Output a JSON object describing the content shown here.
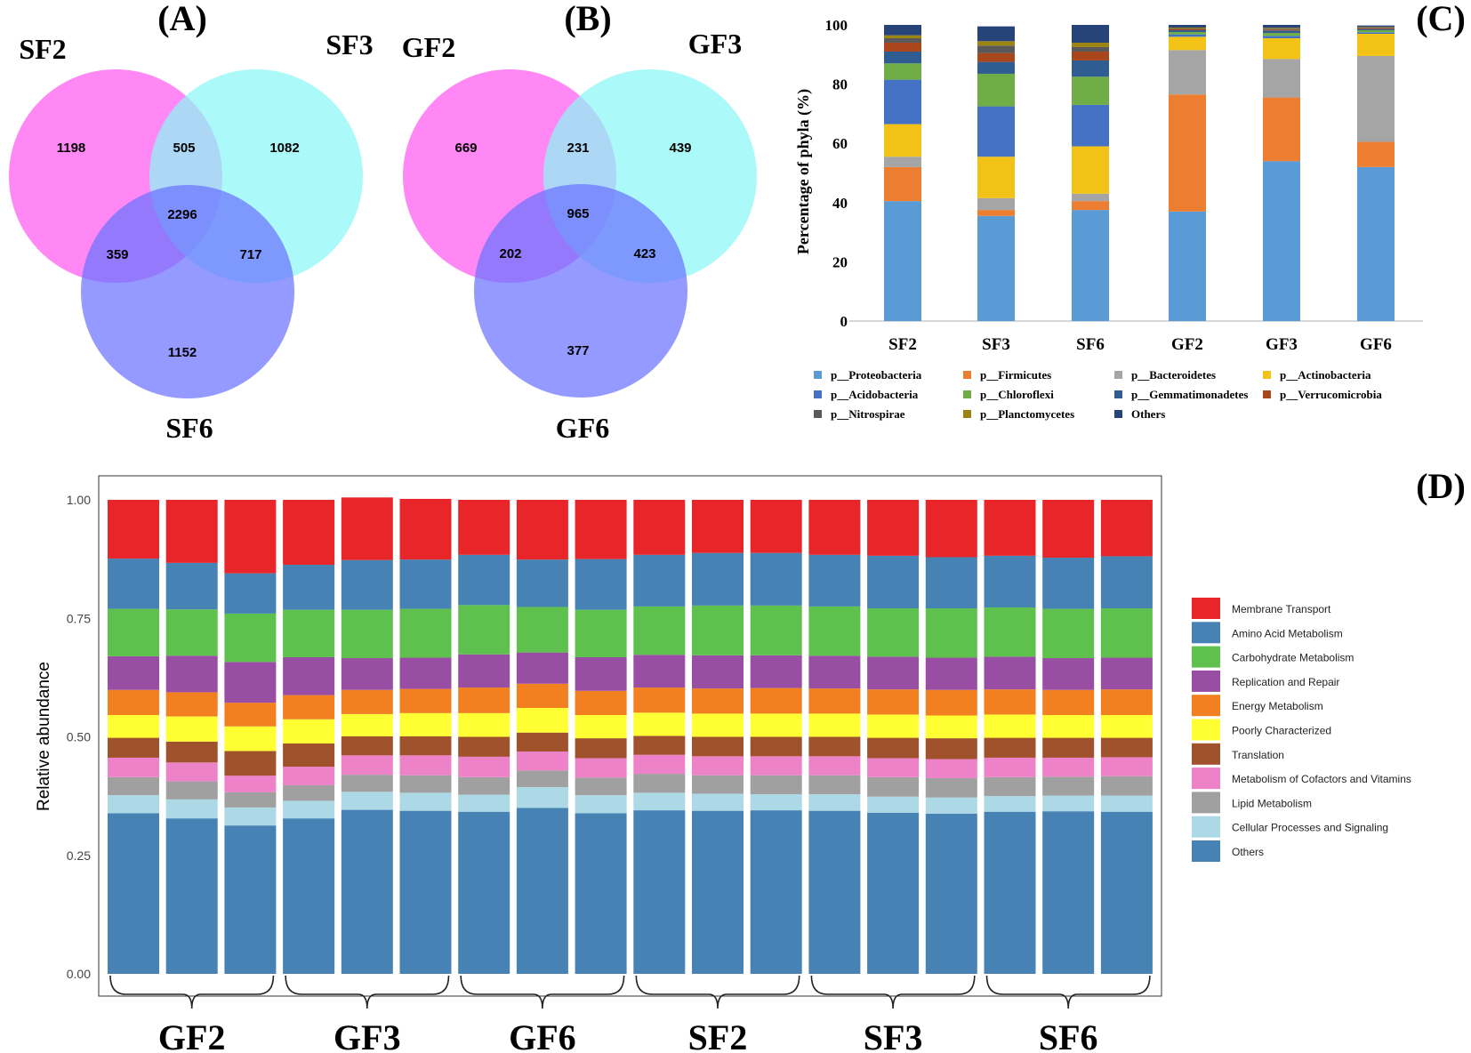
{
  "panels": {
    "A": {
      "label": "(A)",
      "sets": [
        "SF2",
        "SF3",
        "SF6"
      ],
      "counts": {
        "only1": "1198",
        "one_two": "505",
        "only2": "1082",
        "all": "2296",
        "one_three": "359",
        "two_three": "717",
        "only3": "1152"
      }
    },
    "B": {
      "label": "(B)",
      "sets": [
        "GF2",
        "GF3",
        "GF6"
      ],
      "counts": {
        "only1": "669",
        "one_two": "231",
        "only2": "439",
        "all": "965",
        "one_three": "202",
        "two_three": "423",
        "only3": "377"
      }
    },
    "C": {
      "label": "(C)"
    },
    "D": {
      "label": "(D)"
    }
  },
  "colors": {
    "venn_first": "#ff6ef3",
    "venn_second": "#8cf7f7",
    "venn_third": "#6b73ff"
  },
  "chart_data": [
    {
      "type": "bar",
      "stacked": true,
      "panel": "C",
      "ylabel": "Percentage of phyla (%)",
      "ylim": [
        0,
        100
      ],
      "yticks": [
        "0",
        "20",
        "40",
        "60",
        "80",
        "100"
      ],
      "categories": [
        "SF2",
        "SF3",
        "SF6",
        "GF2",
        "GF3",
        "GF6"
      ],
      "series": [
        {
          "name": "p__Proteobacteria",
          "color": "#5b9bd5",
          "values": [
            40.5,
            35.5,
            37.5,
            37,
            54,
            52
          ]
        },
        {
          "name": "p__Firmicutes",
          "color": "#ed7d31",
          "values": [
            11.5,
            2,
            3,
            39.5,
            21.5,
            8.5
          ]
        },
        {
          "name": "p__Bacteroidetes",
          "color": "#a5a5a5",
          "values": [
            3.5,
            4,
            2.5,
            15,
            13,
            29
          ]
        },
        {
          "name": "p__Actinobacteria",
          "color": "#f2c316",
          "values": [
            11,
            14,
            16,
            4.5,
            7,
            7.5
          ]
        },
        {
          "name": "p__Acidobacteria",
          "color": "#4472c4",
          "values": [
            15,
            17,
            14,
            0.8,
            0.8,
            0.5
          ]
        },
        {
          "name": "p__Chloroflexi",
          "color": "#70ad47",
          "values": [
            5.5,
            11,
            9.5,
            0.8,
            1,
            0.7
          ]
        },
        {
          "name": "p__Gemmatimonadetes",
          "color": "#2f5d91",
          "values": [
            4,
            4,
            5.5,
            0.6,
            0.8,
            0.4
          ]
        },
        {
          "name": "p__Verrucomicrobia",
          "color": "#a9461b",
          "values": [
            3,
            3,
            3,
            0.4,
            0.3,
            0.3
          ]
        },
        {
          "name": "p__Nitrospirae",
          "color": "#595959",
          "values": [
            1.5,
            2.5,
            1.5,
            0.2,
            0.3,
            0.2
          ]
        },
        {
          "name": "p__Planctomycetes",
          "color": "#9c8413",
          "values": [
            1,
            1.5,
            1.5,
            0.3,
            0.3,
            0.2
          ]
        },
        {
          "name": "Others",
          "color": "#264478",
          "values": [
            3.5,
            5,
            6,
            0.9,
            1,
            0.5
          ]
        }
      ]
    },
    {
      "type": "bar",
      "stacked": true,
      "panel": "D",
      "ylabel": "Relative abundance",
      "ylim": [
        0,
        1
      ],
      "yticks": [
        "0.00",
        "0.25",
        "0.50",
        "0.75",
        "1.00"
      ],
      "groups": [
        "GF2",
        "GF3",
        "GF6",
        "SF2",
        "SF3",
        "SF6"
      ],
      "bars_per_group": 3,
      "series": [
        {
          "name": "Others",
          "color": "#4682b4",
          "values": [
            0.339,
            0.328,
            0.313,
            0.328,
            0.346,
            0.344,
            0.342,
            0.35,
            0.339,
            0.345,
            0.344,
            0.345,
            0.344,
            0.34,
            0.338,
            0.342,
            0.343,
            0.342
          ]
        },
        {
          "name": "Cellular Processes and Signaling",
          "color": "#add8e6",
          "values": [
            0.038,
            0.04,
            0.038,
            0.037,
            0.038,
            0.038,
            0.036,
            0.044,
            0.038,
            0.037,
            0.036,
            0.034,
            0.035,
            0.034,
            0.034,
            0.033,
            0.033,
            0.034
          ]
        },
        {
          "name": "Lipid Metabolism",
          "color": "#a0a0a0",
          "values": [
            0.038,
            0.038,
            0.032,
            0.033,
            0.036,
            0.037,
            0.037,
            0.035,
            0.037,
            0.04,
            0.039,
            0.04,
            0.04,
            0.041,
            0.041,
            0.04,
            0.04,
            0.041
          ]
        },
        {
          "name": "Metabolism of Cofactors and Vitamins",
          "color": "#ee82c8",
          "values": [
            0.041,
            0.04,
            0.035,
            0.039,
            0.041,
            0.042,
            0.043,
            0.04,
            0.041,
            0.04,
            0.04,
            0.04,
            0.04,
            0.04,
            0.04,
            0.041,
            0.04,
            0.04
          ]
        },
        {
          "name": "Translation",
          "color": "#a0522d",
          "values": [
            0.042,
            0.044,
            0.052,
            0.049,
            0.04,
            0.04,
            0.042,
            0.04,
            0.042,
            0.04,
            0.041,
            0.041,
            0.041,
            0.043,
            0.044,
            0.042,
            0.042,
            0.041
          ]
        },
        {
          "name": "Poorly Characterized",
          "color": "#ffff33",
          "values": [
            0.048,
            0.053,
            0.052,
            0.051,
            0.047,
            0.049,
            0.05,
            0.052,
            0.049,
            0.049,
            0.049,
            0.049,
            0.049,
            0.049,
            0.048,
            0.049,
            0.048,
            0.048
          ]
        },
        {
          "name": "Energy Metabolism",
          "color": "#f28020",
          "values": [
            0.053,
            0.051,
            0.05,
            0.051,
            0.051,
            0.051,
            0.054,
            0.051,
            0.051,
            0.053,
            0.053,
            0.054,
            0.053,
            0.053,
            0.054,
            0.053,
            0.053,
            0.054
          ]
        },
        {
          "name": "Replication and Repair",
          "color": "#984ea3",
          "values": [
            0.071,
            0.077,
            0.086,
            0.08,
            0.067,
            0.066,
            0.07,
            0.066,
            0.071,
            0.069,
            0.07,
            0.069,
            0.069,
            0.069,
            0.068,
            0.069,
            0.067,
            0.067
          ]
        },
        {
          "name": "Carbohydrate Metabolism",
          "color": "#5ec14e",
          "values": [
            0.1,
            0.098,
            0.102,
            0.1,
            0.102,
            0.103,
            0.104,
            0.096,
            0.1,
            0.102,
            0.105,
            0.105,
            0.104,
            0.102,
            0.104,
            0.104,
            0.104,
            0.104
          ]
        },
        {
          "name": "Amino Acid Metabolism",
          "color": "#4682b4",
          "values": [
            0.106,
            0.098,
            0.085,
            0.095,
            0.105,
            0.104,
            0.106,
            0.1,
            0.107,
            0.109,
            0.111,
            0.111,
            0.109,
            0.111,
            0.108,
            0.109,
            0.108,
            0.11
          ]
        },
        {
          "name": "Membrane Transport",
          "color": "#e8262a",
          "values": [
            0.124,
            0.133,
            0.155,
            0.137,
            0.132,
            0.128,
            0.116,
            0.126,
            0.125,
            0.116,
            0.112,
            0.112,
            0.116,
            0.118,
            0.121,
            0.118,
            0.122,
            0.119
          ]
        }
      ]
    }
  ]
}
